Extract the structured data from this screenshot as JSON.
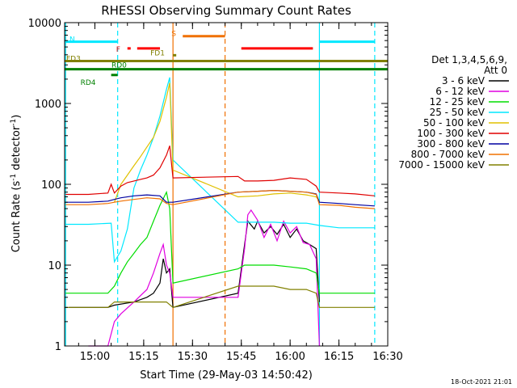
{
  "chart_data": {
    "type": "line",
    "title": "RHESSI Observing Summary Count Rates",
    "xlabel": "Start Time (29-May-03 14:50:42)",
    "ylabel_main": "Count Rate (s",
    "ylabel_exp1": "-1",
    "ylabel_mid": " detector",
    "ylabel_exp2": "-1",
    "ylabel_end": ")",
    "y_scale": "log",
    "ylim": [
      1,
      10000
    ],
    "xlim": [
      "14:50:42",
      "16:30:00"
    ],
    "x_ticks": [
      "15:00",
      "15:15",
      "15:30",
      "15:45",
      "16:00",
      "16:15",
      "16:30"
    ],
    "y_ticks": [
      "1",
      "10",
      "100",
      "1000",
      "10000"
    ],
    "legend_title": [
      "Det 1,3,4,5,6,9,",
      "Att 0"
    ],
    "legend_placement": "right",
    "series": [
      {
        "name": "3 - 6 keV",
        "color": "#000000",
        "points": [
          [
            "14:52",
            3
          ],
          [
            "14:58",
            3
          ],
          [
            "15:04",
            3
          ],
          [
            "15:06",
            3.2
          ],
          [
            "15:12",
            3.5
          ],
          [
            "15:16",
            4
          ],
          [
            "15:18",
            4.5
          ],
          [
            "15:20",
            6
          ],
          [
            "15:21",
            12
          ],
          [
            "15:22",
            8
          ],
          [
            "15:23",
            9
          ],
          [
            "15:24",
            3
          ],
          [
            "15:44",
            4.5
          ],
          [
            "15:46",
            18
          ],
          [
            "15:47",
            35
          ],
          [
            "15:49",
            28
          ],
          [
            "15:50",
            35
          ],
          [
            "15:52",
            25
          ],
          [
            "15:54",
            30
          ],
          [
            "15:56",
            24
          ],
          [
            "15:58",
            32
          ],
          [
            "16:00",
            22
          ],
          [
            "16:02",
            28
          ],
          [
            "16:04",
            20
          ],
          [
            "16:06",
            18
          ],
          [
            "16:08",
            16
          ],
          [
            "16:09",
            3.5
          ]
        ]
      },
      {
        "name": "6 - 12 keV",
        "color": "#e000e0",
        "points": [
          [
            "14:58",
            1
          ],
          [
            "15:04",
            1
          ],
          [
            "15:06",
            2
          ],
          [
            "15:08",
            2.5
          ],
          [
            "15:12",
            3.5
          ],
          [
            "15:16",
            5
          ],
          [
            "15:18",
            8
          ],
          [
            "15:20",
            14
          ],
          [
            "15:21",
            18
          ],
          [
            "15:22",
            10
          ],
          [
            "15:23",
            8
          ],
          [
            "15:24",
            4
          ],
          [
            "15:44",
            4
          ],
          [
            "15:46",
            16
          ],
          [
            "15:47",
            42
          ],
          [
            "15:48",
            48
          ],
          [
            "15:50",
            36
          ],
          [
            "15:52",
            22
          ],
          [
            "15:54",
            32
          ],
          [
            "15:56",
            20
          ],
          [
            "15:58",
            35
          ],
          [
            "16:00",
            25
          ],
          [
            "16:02",
            30
          ],
          [
            "16:04",
            19
          ],
          [
            "16:06",
            18
          ],
          [
            "16:08",
            12
          ],
          [
            "16:09",
            1
          ]
        ]
      },
      {
        "name": "12 - 25 keV",
        "color": "#00dd00",
        "points": [
          [
            "14:51",
            4.5
          ],
          [
            "14:58",
            4.5
          ],
          [
            "15:04",
            4.5
          ],
          [
            "15:06",
            5.5
          ],
          [
            "15:08",
            8
          ],
          [
            "15:10",
            11
          ],
          [
            "15:12",
            14
          ],
          [
            "15:14",
            18
          ],
          [
            "15:16",
            22
          ],
          [
            "15:18",
            35
          ],
          [
            "15:20",
            55
          ],
          [
            "15:22",
            80
          ],
          [
            "15:23",
            50
          ],
          [
            "15:24",
            6
          ],
          [
            "15:44",
            9
          ],
          [
            "15:46",
            10
          ],
          [
            "15:50",
            10
          ],
          [
            "15:55",
            10
          ],
          [
            "16:00",
            9.5
          ],
          [
            "16:05",
            9
          ],
          [
            "16:08",
            8
          ],
          [
            "16:09",
            4.5
          ],
          [
            "16:15",
            4.5
          ],
          [
            "16:20",
            4.5
          ],
          [
            "16:26",
            4.5
          ]
        ]
      },
      {
        "name": "25 - 50 keV",
        "color": "#00e8ff",
        "points": [
          [
            "14:51",
            32
          ],
          [
            "14:58",
            32
          ],
          [
            "15:05",
            33
          ],
          [
            "15:06",
            11
          ],
          [
            "15:08",
            15
          ],
          [
            "15:10",
            28
          ],
          [
            "15:12",
            90
          ],
          [
            "15:14",
            150
          ],
          [
            "15:16",
            230
          ],
          [
            "15:18",
            380
          ],
          [
            "15:20",
            700
          ],
          [
            "15:22",
            1500
          ],
          [
            "15:23",
            2100
          ],
          [
            "15:24",
            200
          ],
          [
            "15:44",
            34
          ],
          [
            "15:50",
            34
          ],
          [
            "15:55",
            34
          ],
          [
            "16:00",
            33
          ],
          [
            "16:05",
            33
          ],
          [
            "16:09",
            31
          ],
          [
            "16:15",
            29
          ],
          [
            "16:20",
            29
          ],
          [
            "16:26",
            29
          ]
        ]
      },
      {
        "name": "50 - 100 keV",
        "color": "#e0c000",
        "points": [
          [
            "15:06",
            60
          ],
          [
            "15:08",
            100
          ],
          [
            "15:10",
            130
          ],
          [
            "15:12",
            170
          ],
          [
            "15:14",
            220
          ],
          [
            "15:16",
            290
          ],
          [
            "15:18",
            380
          ],
          [
            "15:20",
            600
          ],
          [
            "15:22",
            1200
          ],
          [
            "15:23",
            1800
          ],
          [
            "15:24",
            150
          ],
          [
            "15:44",
            70
          ],
          [
            "15:50",
            72
          ],
          [
            "15:55",
            76
          ],
          [
            "16:00",
            78
          ],
          [
            "16:05",
            74
          ],
          [
            "16:08",
            70
          ],
          [
            "16:09",
            62
          ]
        ]
      },
      {
        "name": "100 - 300 keV",
        "color": "#e00000",
        "points": [
          [
            "14:51",
            75
          ],
          [
            "14:58",
            75
          ],
          [
            "15:04",
            78
          ],
          [
            "15:05",
            100
          ],
          [
            "15:06",
            78
          ],
          [
            "15:08",
            95
          ],
          [
            "15:10",
            105
          ],
          [
            "15:12",
            110
          ],
          [
            "15:14",
            115
          ],
          [
            "15:16",
            120
          ],
          [
            "15:18",
            130
          ],
          [
            "15:20",
            160
          ],
          [
            "15:22",
            230
          ],
          [
            "15:23",
            300
          ],
          [
            "15:24",
            120
          ],
          [
            "15:44",
            125
          ],
          [
            "15:46",
            110
          ],
          [
            "15:50",
            110
          ],
          [
            "15:55",
            112
          ],
          [
            "16:00",
            120
          ],
          [
            "16:05",
            115
          ],
          [
            "16:08",
            95
          ],
          [
            "16:09",
            80
          ],
          [
            "16:15",
            78
          ],
          [
            "16:20",
            76
          ],
          [
            "16:26",
            72
          ]
        ]
      },
      {
        "name": "300 - 800 keV",
        "color": "#0000a0",
        "points": [
          [
            "14:51",
            60
          ],
          [
            "14:58",
            60
          ],
          [
            "15:04",
            62
          ],
          [
            "15:06",
            65
          ],
          [
            "15:08",
            68
          ],
          [
            "15:12",
            72
          ],
          [
            "15:16",
            74
          ],
          [
            "15:20",
            72
          ],
          [
            "15:22",
            60
          ],
          [
            "15:24",
            60
          ],
          [
            "15:44",
            80
          ],
          [
            "15:50",
            82
          ],
          [
            "15:55",
            84
          ],
          [
            "16:00",
            82
          ],
          [
            "16:05",
            80
          ],
          [
            "16:08",
            76
          ],
          [
            "16:09",
            60
          ],
          [
            "16:15",
            58
          ],
          [
            "16:20",
            56
          ],
          [
            "16:26",
            54
          ]
        ]
      },
      {
        "name": "800 - 7000 keV",
        "color": "#f07000",
        "points": [
          [
            "14:51",
            56
          ],
          [
            "14:58",
            56
          ],
          [
            "15:04",
            58
          ],
          [
            "15:06",
            60
          ],
          [
            "15:08",
            62
          ],
          [
            "15:12",
            65
          ],
          [
            "15:16",
            68
          ],
          [
            "15:20",
            66
          ],
          [
            "15:22",
            58
          ],
          [
            "15:24",
            56
          ],
          [
            "15:44",
            80
          ],
          [
            "15:50",
            82
          ],
          [
            "15:55",
            84
          ],
          [
            "16:00",
            82
          ],
          [
            "16:05",
            80
          ],
          [
            "16:08",
            75
          ],
          [
            "16:09",
            56
          ],
          [
            "16:15",
            55
          ],
          [
            "16:20",
            52
          ],
          [
            "16:26",
            50
          ]
        ]
      },
      {
        "name": "7000 - 15000 keV",
        "color": "#808000",
        "points": [
          [
            "14:51",
            3
          ],
          [
            "14:58",
            3
          ],
          [
            "15:04",
            3
          ],
          [
            "15:06",
            3.5
          ],
          [
            "15:12",
            3.5
          ],
          [
            "15:18",
            3.5
          ],
          [
            "15:22",
            3.5
          ],
          [
            "15:24",
            3
          ],
          [
            "15:44",
            5.5
          ],
          [
            "15:50",
            5.5
          ],
          [
            "15:55",
            5.5
          ],
          [
            "16:00",
            5
          ],
          [
            "16:05",
            5
          ],
          [
            "16:08",
            4.5
          ],
          [
            "16:09",
            3
          ],
          [
            "16:15",
            3
          ],
          [
            "16:20",
            3
          ],
          [
            "16:26",
            3
          ]
        ]
      }
    ],
    "flag_bars": [
      {
        "label": "N",
        "color": "#00e8ff",
        "level": 5800,
        "segments": [
          [
            "14:50:42",
            "15:07"
          ],
          [
            "16:09",
            "16:26"
          ]
        ]
      },
      {
        "label": "F",
        "color": "#ff0000",
        "level": 4800,
        "segments": [
          [
            "15:10",
            "15:11"
          ],
          [
            "15:13",
            "15:20"
          ],
          [
            "15:45",
            "16:07"
          ]
        ]
      },
      {
        "label": "S",
        "color": "#f07000",
        "level": 6800,
        "segments": [
          [
            "15:27",
            "15:40"
          ]
        ]
      },
      {
        "label": "FD1",
        "color": "#808000",
        "level": 3950,
        "segments": [
          [
            "15:24",
            "15:25"
          ]
        ]
      },
      {
        "label": "FD3",
        "color": "#808000",
        "level": 3350,
        "segments": [
          [
            "14:50:42",
            "16:30"
          ]
        ]
      },
      {
        "label": "RD0",
        "color": "#008000",
        "level": 2650,
        "segments": [
          [
            "14:50:42",
            "16:30"
          ]
        ]
      },
      {
        "label": "RD4",
        "color": "#008000",
        "level": 2250,
        "segments": [
          [
            "15:05",
            "15:07"
          ]
        ]
      }
    ],
    "vertical_markers": [
      {
        "time": "14:51",
        "color": "#00e8ff",
        "style": "solid"
      },
      {
        "time": "15:07",
        "color": "#00e8ff",
        "style": "dashed"
      },
      {
        "time": "15:24",
        "color": "#f07000",
        "style": "solid"
      },
      {
        "time": "15:40",
        "color": "#f07000",
        "style": "dashed"
      },
      {
        "time": "16:09",
        "color": "#00e8ff",
        "style": "solid"
      },
      {
        "time": "16:26",
        "color": "#00e8ff",
        "style": "dashed"
      }
    ],
    "grid": false
  },
  "footer_timestamp": "18-Oct-2021 21:01"
}
